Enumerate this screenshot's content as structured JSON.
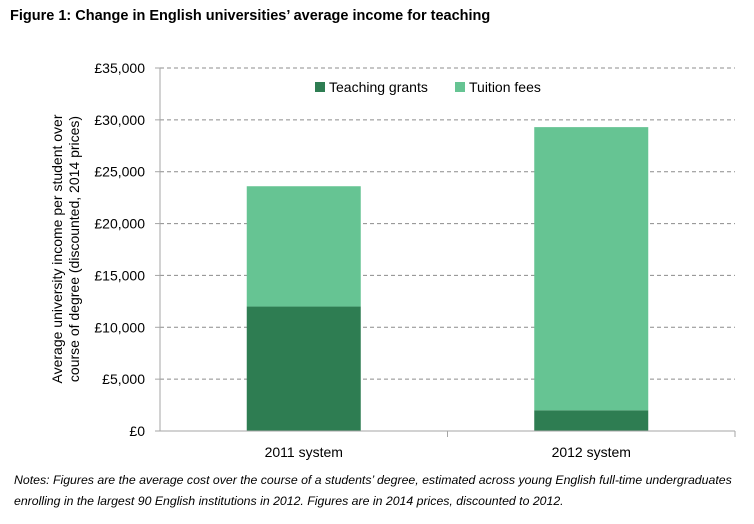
{
  "figure_title": "Figure 1: Change in English universities’ average income for teaching",
  "notes": "Notes: Figures are the average cost over the course of a students’ degree, estimated across young English full-time undergraduates enrolling in the largest 90 English institutions in 2012. Figures are in 2014 prices, discounted to 2012.",
  "colors": {
    "teaching_grants": "#2e7d52",
    "tuition_fees": "#66c493",
    "grid": "#8c8c8c",
    "axis": "#a6a6a6"
  },
  "chart_data": {
    "type": "bar",
    "stacked": true,
    "title": "",
    "xlabel": "",
    "ylabel_lines": [
      "Average university income per student over",
      "course of degree (discounted, 2014 prices)"
    ],
    "categories": [
      "2011 system",
      "2012 system"
    ],
    "series": [
      {
        "name": "Teaching grants",
        "values": [
          12000,
          2000
        ]
      },
      {
        "name": "Tuition fees",
        "values": [
          11600,
          27300
        ]
      }
    ],
    "ylim": [
      0,
      35000
    ],
    "yticks": [
      0,
      5000,
      10000,
      15000,
      20000,
      25000,
      30000,
      35000
    ],
    "ytick_labels": [
      "£0",
      "£5,000",
      "£10,000",
      "£15,000",
      "£20,000",
      "£25,000",
      "£30,000",
      "£35,000"
    ],
    "grid": true,
    "legend_position": "top-center"
  }
}
